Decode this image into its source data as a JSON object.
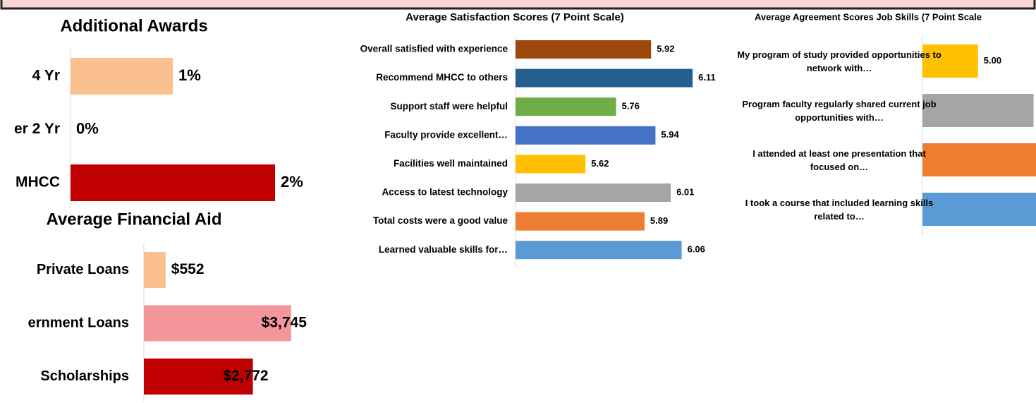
{
  "chart_data": [
    {
      "type": "bar",
      "orientation": "horizontal",
      "title": "Additional Awards",
      "categories": [
        "4 Yr",
        "er 2 Yr",
        "MHCC"
      ],
      "values": [
        1,
        0,
        2
      ],
      "value_labels": [
        "1%",
        "0%",
        "2%"
      ],
      "colors": [
        "#fac090",
        "#e6b9b8",
        "#c00000"
      ],
      "xlim": [
        0,
        3
      ]
    },
    {
      "type": "bar",
      "orientation": "horizontal",
      "title": "Average Financial Aid",
      "categories": [
        "Private Loans",
        "ernment Loans",
        "Scholarships"
      ],
      "values": [
        552,
        3745,
        2772
      ],
      "value_labels": [
        "$552",
        "$3,745",
        "$2,772"
      ],
      "colors": [
        "#fac090",
        "#f4969b",
        "#c00000"
      ],
      "xlim": [
        0,
        4500
      ]
    },
    {
      "type": "bar",
      "orientation": "horizontal",
      "title": "Average Satisfaction Scores (7 Point Scale)",
      "categories": [
        "Overall satisfied with experience",
        "Recommend MHCC to others",
        "Support staff were helpful",
        "Faculty provide excellent…",
        "Facilities well maintained",
        "Access to latest technology",
        "Total costs were a good value",
        "Learned valuable skills for…"
      ],
      "values": [
        5.92,
        6.11,
        5.76,
        5.94,
        5.62,
        6.01,
        5.89,
        6.06
      ],
      "colors": [
        "#9e480e",
        "#255e91",
        "#70ad47",
        "#4472c4",
        "#ffc000",
        "#a5a5a5",
        "#ed7d31",
        "#5b9bd5"
      ],
      "xlim": [
        5.3,
        6.2
      ]
    },
    {
      "type": "bar",
      "orientation": "horizontal",
      "title": "Average Agreement Scores Job Skills (7 Point Scale",
      "categories": [
        "My program of study provided opportunities to network with…",
        "Program faculty regularly shared current job opportunities with…",
        "I attended at least one presentation that focused on…",
        "I took a course that included learning skills related to…"
      ],
      "values": [
        5.0,
        5.3,
        5.4,
        5.4
      ],
      "value_labels": [
        "5.00",
        null,
        null,
        null
      ],
      "colors": [
        "#ffc000",
        "#a5a5a5",
        "#ed7d31",
        "#5b9bd5"
      ],
      "xlim": [
        4.7,
        5.5
      ]
    }
  ]
}
